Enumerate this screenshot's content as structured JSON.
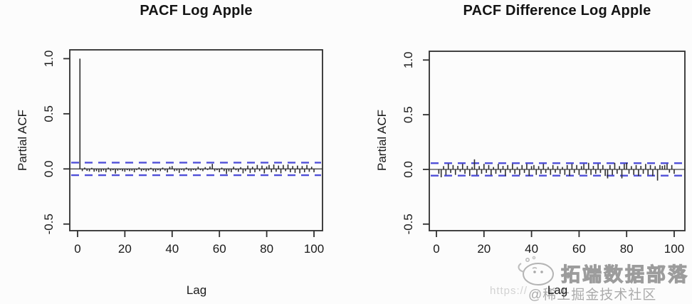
{
  "page": {
    "background": "#fcfcfc"
  },
  "watermark": {
    "logo_icon": "tecdat-mascot-icon",
    "brand": "拓端数据部落",
    "url_fragment": "https://",
    "community": "@稀土掘金技术社区"
  },
  "chart_data": [
    {
      "type": "bar",
      "title": "PACF Log Apple",
      "xlabel": "Lag",
      "ylabel": "Partial ACF",
      "xlim": [
        -3.3,
        103.6
      ],
      "ylim": [
        -0.56,
        1.08
      ],
      "xtick_values": [
        0,
        20,
        40,
        60,
        80,
        100
      ],
      "xtick_labels": [
        "0",
        "20",
        "40",
        "60",
        "80",
        "100"
      ],
      "ytick_values": [
        -0.5,
        0,
        0.5,
        1
      ],
      "ytick_labels": [
        "-0.5",
        "0.0",
        "0.5",
        "1.0"
      ],
      "grid": false,
      "confidence_bounds": [
        -0.057,
        0.057
      ],
      "confidence_line_style": "dashed",
      "confidence_color": "#4f4fd8",
      "axis_color": "#2e2e2e",
      "bar_color": "#2e2e2e",
      "lag_start": 1,
      "values": [
        1.0,
        -0.02,
        0.012,
        -0.018,
        -0.022,
        0.01,
        -0.025,
        -0.02,
        -0.03,
        -0.024,
        -0.015,
        -0.03,
        0.012,
        -0.02,
        -0.012,
        -0.042,
        -0.016,
        -0.01,
        -0.02,
        -0.026,
        -0.012,
        -0.02,
        -0.016,
        -0.03,
        -0.01,
        0.015,
        -0.02,
        -0.012,
        -0.022,
        -0.015,
        0.01,
        -0.02,
        -0.026,
        -0.012,
        -0.02,
        0.012,
        -0.015,
        -0.032,
        0.02,
        0.026,
        -0.02,
        -0.016,
        -0.036,
        -0.01,
        -0.02,
        0.012,
        -0.015,
        -0.022,
        -0.01,
        -0.016,
        0.02,
        -0.012,
        -0.02,
        0.016,
        -0.01,
        0.022,
        0.046,
        -0.02,
        -0.012,
        -0.03,
        0.012,
        -0.02,
        -0.046,
        -0.022,
        -0.03,
        0.02,
        -0.012,
        -0.026,
        0.016,
        -0.04,
        -0.02,
        0.03,
        -0.036,
        0.02,
        -0.03,
        0.036,
        -0.02,
        0.03,
        -0.04,
        0.022,
        0.036,
        -0.03,
        0.04,
        -0.026,
        0.03,
        -0.04,
        0.036,
        -0.02,
        0.04,
        -0.03,
        0.026,
        -0.036,
        0.03,
        -0.04,
        0.026,
        -0.03,
        0.036,
        -0.026,
        0.02,
        -0.03
      ]
    },
    {
      "type": "bar",
      "title": "PACF Difference Log Apple",
      "xlabel": "Lag",
      "ylabel": "Partial ACF",
      "xlim": [
        -3.0,
        104.5
      ],
      "ylim": [
        -0.56,
        1.08
      ],
      "xtick_values": [
        0,
        20,
        40,
        60,
        80,
        100
      ],
      "xtick_labels": [
        "0",
        "20",
        "40",
        "60",
        "80",
        "100"
      ],
      "ytick_values": [
        -0.5,
        0,
        0.5,
        1
      ],
      "ytick_labels": [
        "-0.5",
        "0.0",
        "0.5",
        "1.0"
      ],
      "grid": false,
      "confidence_bounds": [
        -0.057,
        0.057
      ],
      "confidence_line_style": "dashed",
      "confidence_color": "#4f4fd8",
      "axis_color": "#2e2e2e",
      "bar_color": "#2e2e2e",
      "lag_start": 1,
      "values": [
        -0.04,
        -0.072,
        0.03,
        -0.05,
        0.052,
        -0.032,
        0.04,
        -0.05,
        0.032,
        -0.022,
        0.05,
        -0.04,
        0.032,
        -0.06,
        0.022,
        0.092,
        -0.05,
        0.03,
        -0.04,
        0.05,
        -0.032,
        0.04,
        -0.052,
        0.022,
        -0.04,
        0.05,
        -0.03,
        0.032,
        -0.06,
        0.04,
        -0.03,
        0.05,
        -0.042,
        0.022,
        -0.05,
        0.04,
        -0.032,
        0.05,
        -0.06,
        0.03,
        0.04,
        -0.05,
        0.03,
        -0.04,
        0.05,
        -0.032,
        0.022,
        -0.05,
        0.04,
        -0.03,
        0.03,
        -0.042,
        0.022,
        -0.05,
        0.04,
        -0.06,
        0.05,
        -0.032,
        0.04,
        -0.05,
        0.03,
        0.05,
        -0.04,
        0.06,
        -0.05,
        0.032,
        -0.04,
        0.05,
        -0.032,
        0.04,
        -0.06,
        -0.082,
        0.04,
        -0.05,
        0.06,
        -0.04,
        0.03,
        -0.082,
        0.05,
        0.06,
        -0.04,
        0.03,
        -0.05,
        0.04,
        -0.06,
        0.032,
        -0.04,
        0.05,
        -0.05,
        0.04,
        -0.06,
        0.03,
        -0.102,
        0.04,
        0.032,
        0.04,
        0.05,
        -0.03,
        0.04,
        -0.04
      ]
    }
  ]
}
